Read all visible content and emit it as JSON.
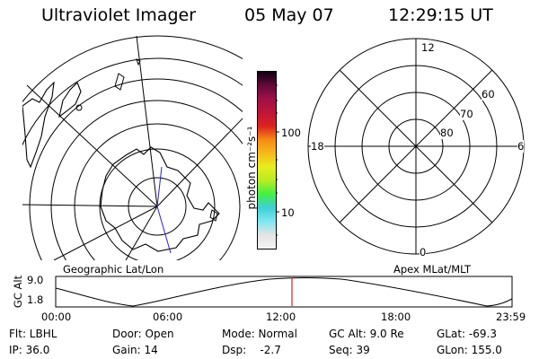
{
  "header": {
    "instrument": "Ultraviolet Imager",
    "date": "05 May 07",
    "time": "12:29:15 UT"
  },
  "colorbar": {
    "unit_label": "photon cm⁻²s⁻¹",
    "ticks": [
      "100",
      "10"
    ],
    "colors": [
      "#f4f4f4",
      "#e4e4e4",
      "#7fe6f0",
      "#3fd0d8",
      "#43ef43",
      "#b7ec22",
      "#e7ed1f",
      "#f7ba1c",
      "#f78a16",
      "#dd2222",
      "#c0143a",
      "#a01048",
      "#620a3a",
      "#100010"
    ]
  },
  "left_map": {
    "label": "Geographic Lat/Lon"
  },
  "right_map": {
    "label": "Apex MLat/MLT",
    "mlt_labels": [
      "12",
      "18",
      "6",
      "0"
    ],
    "mlat_labels": [
      "60",
      "70",
      "80"
    ]
  },
  "altitude_plot": {
    "ylabel": "GC Alt",
    "yticks": [
      "9.0",
      "1.8"
    ],
    "xticks": [
      "00:00",
      "06:00",
      "12:00",
      "18:00",
      "23:59"
    ],
    "current_marker_time": "12:29",
    "marker_color": "#dd2222"
  },
  "status": {
    "flt": "Flt: LBHL",
    "ip": "IP: 36.0",
    "door": "Door: Open",
    "gain": "Gain: 14",
    "mode": "Mode: Normal",
    "dsp": "Dsp:    -2.7",
    "gc_alt": "GC Alt: 9.0 Re",
    "seq": "Seq: 39",
    "glat": "GLat: -69.3",
    "glon": "GLon: 155.0"
  }
}
